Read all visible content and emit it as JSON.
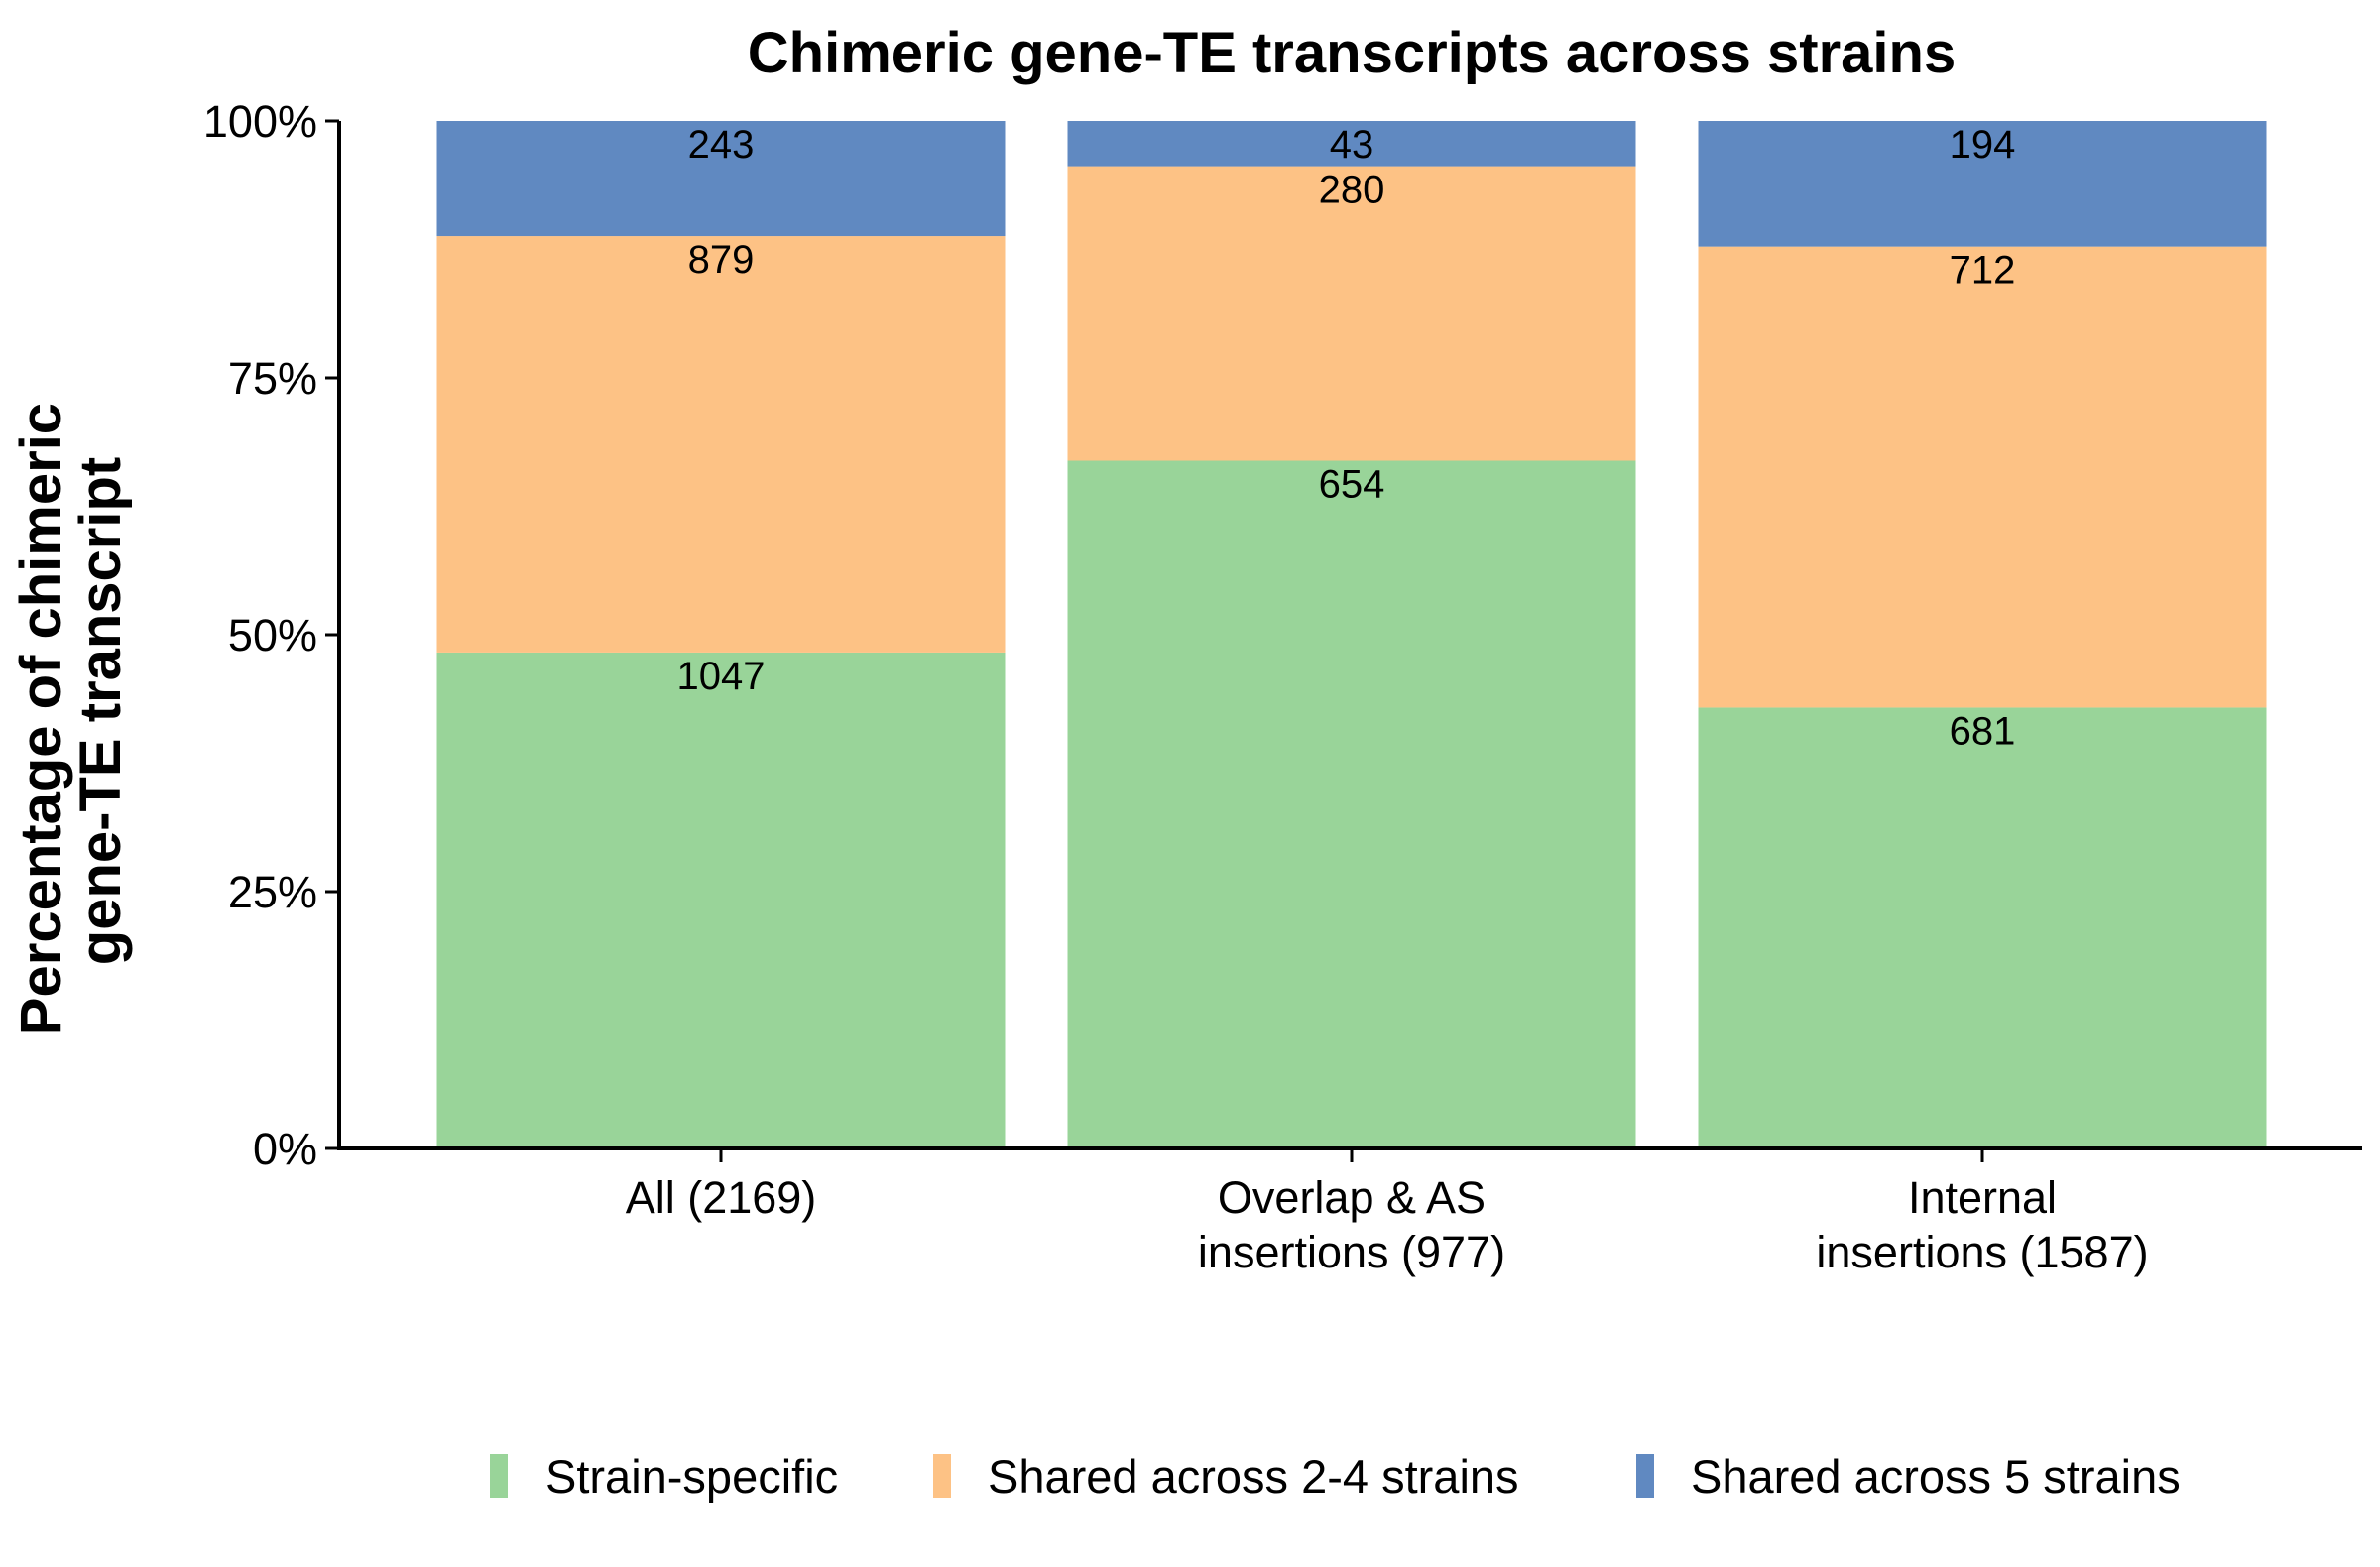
{
  "chart_data": {
    "type": "bar",
    "stacked": true,
    "normalized": true,
    "title": "Chimeric gene-TE transcripts across strains",
    "ylabel": [
      "Percentage of chimeric",
      "gene-TE transcript"
    ],
    "xlabel": "",
    "ylim": [
      0,
      100
    ],
    "yticks": [
      0,
      25,
      50,
      75,
      100
    ],
    "ytick_labels": [
      "0%",
      "25%",
      "50%",
      "75%",
      "100%"
    ],
    "categories": [
      [
        "All (2169)"
      ],
      [
        "Overlap & AS",
        "insertions (977)"
      ],
      [
        "Internal",
        "insertions (1587)"
      ]
    ],
    "series": [
      {
        "name": "Strain-specific",
        "color": "#99D499",
        "values": [
          1047,
          654,
          681
        ]
      },
      {
        "name": "Shared across 2-4 strains",
        "color": "#FDC285",
        "values": [
          879,
          280,
          712
        ]
      },
      {
        "name": "Shared across 5 strains",
        "color": "#6089C1",
        "values": [
          243,
          43,
          194
        ]
      }
    ],
    "legend_position": "bottom",
    "grid": false
  }
}
